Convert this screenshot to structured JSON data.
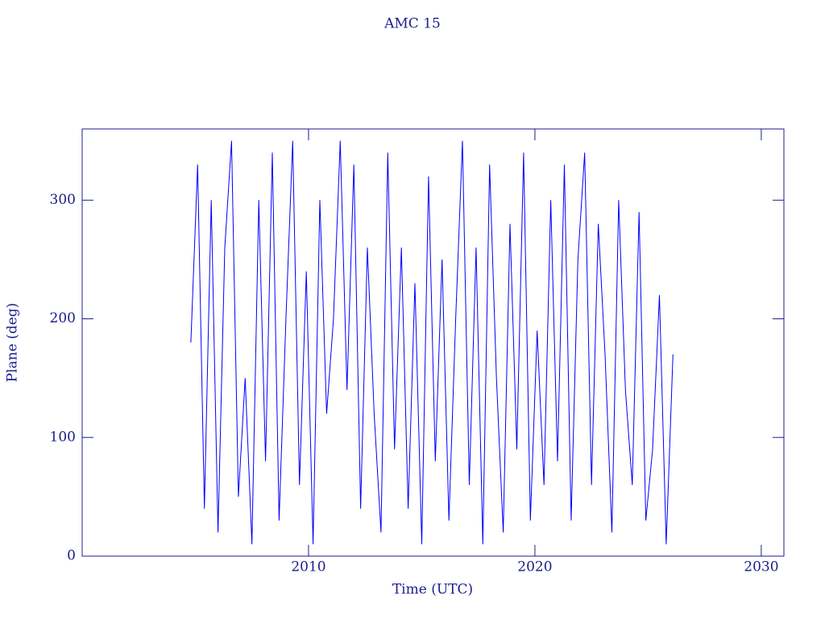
{
  "chart_data": {
    "type": "line",
    "title": "AMC 15",
    "x_label": "Time (UTC)",
    "y_label": "Plane (deg)",
    "xlim": [
      2000,
      2031
    ],
    "xticks": [
      2010,
      2020,
      2030
    ],
    "ylim": [
      0,
      360
    ],
    "yticks": [
      0,
      100,
      200,
      300
    ],
    "axis_color": "#1c1c8c",
    "series": [
      {
        "name": "AMC 15",
        "color": "#0000ff",
        "x": [
          2004.8,
          2005.1,
          2005.4,
          2005.7,
          2006.0,
          2006.3,
          2006.6,
          2006.9,
          2007.2,
          2007.5,
          2007.8,
          2008.1,
          2008.4,
          2008.7,
          2009.0,
          2009.3,
          2009.6,
          2009.9,
          2010.2,
          2010.5,
          2010.8,
          2011.1,
          2011.4,
          2011.7,
          2012.0,
          2012.3,
          2012.6,
          2012.9,
          2013.2,
          2013.5,
          2013.8,
          2014.1,
          2014.4,
          2014.7,
          2015.0,
          2015.3,
          2015.6,
          2015.9,
          2016.2,
          2016.5,
          2016.8,
          2017.1,
          2017.4,
          2017.7,
          2018.0,
          2018.3,
          2018.6,
          2018.9,
          2019.2,
          2019.5,
          2019.8,
          2020.1,
          2020.4,
          2020.7,
          2021.0,
          2021.3,
          2021.6,
          2021.9,
          2022.2,
          2022.5,
          2022.8,
          2023.1,
          2023.4,
          2023.7,
          2024.0,
          2024.3,
          2024.6,
          2024.9,
          2025.2,
          2025.5,
          2025.8,
          2026.1
        ],
        "values": [
          180,
          330,
          40,
          300,
          20,
          260,
          350,
          50,
          150,
          10,
          300,
          80,
          340,
          30,
          200,
          350,
          60,
          240,
          10,
          300,
          120,
          200,
          350,
          140,
          330,
          40,
          260,
          120,
          20,
          340,
          90,
          260,
          40,
          230,
          10,
          320,
          80,
          250,
          30,
          200,
          350,
          60,
          260,
          10,
          330,
          150,
          20,
          280,
          90,
          340,
          30,
          190,
          60,
          300,
          80,
          330,
          30,
          250,
          340,
          60,
          280,
          170,
          20,
          300,
          140,
          60,
          290,
          30,
          90,
          220,
          10,
          170
        ]
      }
    ]
  }
}
